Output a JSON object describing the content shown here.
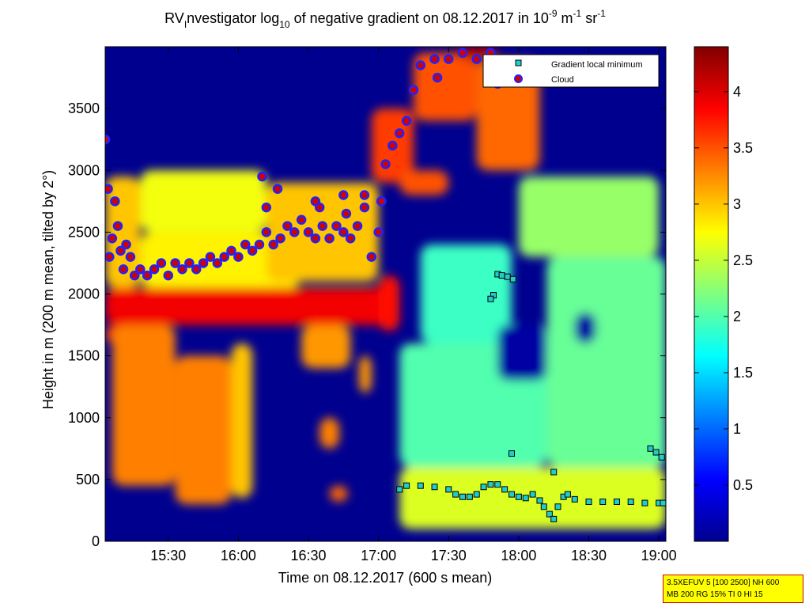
{
  "title": {
    "prefix": "RV",
    "prefix_sub": "I",
    "mid1": "nvestigator log",
    "mid1_sub": "10",
    "mid2": " of negative gradient on 08.12.2017 in 10",
    "exp1": "-9",
    "unit1": " m",
    "exp2": "-1",
    "unit2": " sr",
    "exp3": "-1"
  },
  "info_box": {
    "line1": "3.5XEFUV 5 [100 2500] NH 600",
    "line2": "MB 200 RG 15% TI 0 HI 15"
  },
  "colors": {
    "cloud_fill": "#d10000",
    "cloud_edge": "#2222ff",
    "gradient_min_fill": "#22cccc",
    "background_field": "#00008f"
  },
  "chart_data": {
    "type": "heatmap",
    "title": "RVInvestigator log10 of negative gradient on 08.12.2017 in 10^-9 m^-1 sr^-1",
    "xlabel": "Time on 08.12.2017 (600 s mean)",
    "ylabel": "Height in m (200 m mean, tilted by 2°)",
    "x_range_hours": [
      15.05,
      19.05
    ],
    "y_range_m": [
      0,
      4000
    ],
    "x_ticks": [
      {
        "t": 15.5,
        "label": "15:30"
      },
      {
        "t": 16.0,
        "label": "16:00"
      },
      {
        "t": 16.5,
        "label": "16:30"
      },
      {
        "t": 17.0,
        "label": "17:00"
      },
      {
        "t": 17.5,
        "label": "17:30"
      },
      {
        "t": 18.0,
        "label": "18:00"
      },
      {
        "t": 18.5,
        "label": "18:30"
      },
      {
        "t": 19.0,
        "label": "19:00"
      }
    ],
    "y_ticks": [
      {
        "v": 0,
        "label": "0"
      },
      {
        "v": 500,
        "label": "500"
      },
      {
        "v": 1000,
        "label": "1000"
      },
      {
        "v": 1500,
        "label": "1500"
      },
      {
        "v": 2000,
        "label": "2000"
      },
      {
        "v": 2500,
        "label": "2500"
      },
      {
        "v": 3000,
        "label": "3000"
      },
      {
        "v": 3500,
        "label": "3500"
      }
    ],
    "colorbar": {
      "range": [
        0,
        4.4
      ],
      "ticks": [
        {
          "v": 0.5,
          "label": "0.5"
        },
        {
          "v": 1.0,
          "label": "1"
        },
        {
          "v": 1.5,
          "label": "1.5"
        },
        {
          "v": 2.0,
          "label": "2"
        },
        {
          "v": 2.5,
          "label": "2.5"
        },
        {
          "v": 3.0,
          "label": "3"
        },
        {
          "v": 3.5,
          "label": "3.5"
        },
        {
          "v": 4.0,
          "label": "4"
        }
      ]
    },
    "legend": {
      "placement": "top-right",
      "entries": [
        {
          "name": "Gradient local minimum",
          "marker": "square"
        },
        {
          "name": "Cloud",
          "marker": "circle"
        }
      ]
    },
    "regions": [
      {
        "t0": 15.05,
        "t1": 17.15,
        "h0": 1750,
        "h1": 2050,
        "value": 3.9
      },
      {
        "t0": 15.05,
        "t1": 15.2,
        "h0": 1600,
        "h1": 1750,
        "value": 3.6
      },
      {
        "t0": 15.05,
        "t1": 15.3,
        "h0": 2050,
        "h1": 2950,
        "value": 3.0
      },
      {
        "t0": 15.1,
        "t1": 15.55,
        "h0": 450,
        "h1": 1750,
        "value": 3.3
      },
      {
        "t0": 15.55,
        "t1": 15.95,
        "h0": 300,
        "h1": 1500,
        "value": 3.3
      },
      {
        "t0": 15.95,
        "t1": 16.1,
        "h0": 350,
        "h1": 1600,
        "value": 3.0
      },
      {
        "t0": 15.3,
        "t1": 16.45,
        "h0": 2050,
        "h1": 2500,
        "value": 2.8
      },
      {
        "t0": 15.3,
        "t1": 16.2,
        "h0": 2500,
        "h1": 3000,
        "value": 2.7
      },
      {
        "t0": 16.2,
        "t1": 17.0,
        "h0": 2100,
        "h1": 2900,
        "value": 3.0
      },
      {
        "t0": 16.45,
        "t1": 16.8,
        "h0": 1400,
        "h1": 1750,
        "value": 3.2
      },
      {
        "t0": 16.58,
        "t1": 16.72,
        "h0": 750,
        "h1": 1000,
        "value": 3.3
      },
      {
        "t0": 16.86,
        "t1": 16.95,
        "h0": 1200,
        "h1": 1500,
        "value": 3.2
      },
      {
        "t0": 16.65,
        "t1": 16.78,
        "h0": 320,
        "h1": 450,
        "value": 3.4
      },
      {
        "t0": 17.0,
        "t1": 17.15,
        "h0": 1700,
        "h1": 2150,
        "value": 3.8
      },
      {
        "t0": 16.95,
        "t1": 17.25,
        "h0": 2900,
        "h1": 3500,
        "value": 3.6
      },
      {
        "t0": 17.25,
        "t1": 17.7,
        "h0": 3400,
        "h1": 3950,
        "value": 3.5
      },
      {
        "t0": 17.55,
        "t1": 17.85,
        "h0": 3900,
        "h1": 4000,
        "value": 4.2
      },
      {
        "t0": 17.7,
        "t1": 18.15,
        "h0": 3000,
        "h1": 3900,
        "value": 3.4
      },
      {
        "t0": 17.15,
        "t1": 17.5,
        "h0": 2800,
        "h1": 3000,
        "value": 3.5
      },
      {
        "t0": 17.15,
        "t1": 19.05,
        "h0": 100,
        "h1": 600,
        "value": 2.6
      },
      {
        "t0": 17.15,
        "t1": 18.2,
        "h0": 600,
        "h1": 1600,
        "value": 2.0
      },
      {
        "t0": 17.3,
        "t1": 17.95,
        "h0": 1600,
        "h1": 2400,
        "value": 1.9
      },
      {
        "t0": 18.2,
        "t1": 19.05,
        "h0": 600,
        "h1": 2300,
        "value": 2.1
      },
      {
        "t0": 18.0,
        "t1": 19.0,
        "h0": 2300,
        "h1": 2950,
        "value": 2.3
      },
      {
        "t0": 17.85,
        "t1": 18.2,
        "h0": 1300,
        "h1": 1750,
        "value": 0.1
      },
      {
        "t0": 18.4,
        "t1": 18.55,
        "h0": 1600,
        "h1": 1850,
        "value": 0.1
      }
    ],
    "cloud_points": [
      {
        "t": 15.05,
        "h": 3250
      },
      {
        "t": 15.07,
        "h": 2850
      },
      {
        "t": 15.08,
        "h": 2300
      },
      {
        "t": 15.1,
        "h": 2450
      },
      {
        "t": 15.12,
        "h": 2750
      },
      {
        "t": 15.14,
        "h": 2550
      },
      {
        "t": 15.16,
        "h": 2350
      },
      {
        "t": 15.18,
        "h": 2200
      },
      {
        "t": 15.2,
        "h": 2400
      },
      {
        "t": 15.23,
        "h": 2300
      },
      {
        "t": 15.26,
        "h": 2150
      },
      {
        "t": 15.3,
        "h": 2200
      },
      {
        "t": 15.35,
        "h": 2150
      },
      {
        "t": 15.4,
        "h": 2200
      },
      {
        "t": 15.45,
        "h": 2250
      },
      {
        "t": 15.5,
        "h": 2150
      },
      {
        "t": 15.55,
        "h": 2250
      },
      {
        "t": 15.6,
        "h": 2200
      },
      {
        "t": 15.65,
        "h": 2250
      },
      {
        "t": 15.7,
        "h": 2200
      },
      {
        "t": 15.75,
        "h": 2250
      },
      {
        "t": 15.8,
        "h": 2300
      },
      {
        "t": 15.85,
        "h": 2250
      },
      {
        "t": 15.9,
        "h": 2300
      },
      {
        "t": 15.95,
        "h": 2350
      },
      {
        "t": 16.0,
        "h": 2300
      },
      {
        "t": 16.05,
        "h": 2400
      },
      {
        "t": 16.1,
        "h": 2350
      },
      {
        "t": 16.15,
        "h": 2400
      },
      {
        "t": 16.2,
        "h": 2500
      },
      {
        "t": 16.25,
        "h": 2400
      },
      {
        "t": 16.3,
        "h": 2450
      },
      {
        "t": 16.35,
        "h": 2550
      },
      {
        "t": 16.4,
        "h": 2500
      },
      {
        "t": 16.45,
        "h": 2600
      },
      {
        "t": 16.5,
        "h": 2500
      },
      {
        "t": 16.55,
        "h": 2450
      },
      {
        "t": 16.6,
        "h": 2550
      },
      {
        "t": 16.65,
        "h": 2450
      },
      {
        "t": 16.7,
        "h": 2550
      },
      {
        "t": 16.75,
        "h": 2500
      },
      {
        "t": 16.8,
        "h": 2450
      },
      {
        "t": 16.85,
        "h": 2550
      },
      {
        "t": 16.9,
        "h": 2700
      },
      {
        "t": 16.95,
        "h": 2300
      },
      {
        "t": 17.0,
        "h": 2500
      },
      {
        "t": 17.02,
        "h": 2750
      },
      {
        "t": 17.05,
        "h": 3050
      },
      {
        "t": 17.1,
        "h": 3200
      },
      {
        "t": 17.15,
        "h": 3300
      },
      {
        "t": 17.2,
        "h": 3400
      },
      {
        "t": 17.25,
        "h": 3650
      },
      {
        "t": 17.3,
        "h": 3850
      },
      {
        "t": 17.4,
        "h": 3900
      },
      {
        "t": 17.5,
        "h": 3900
      },
      {
        "t": 17.6,
        "h": 3950
      },
      {
        "t": 17.7,
        "h": 3900
      },
      {
        "t": 17.8,
        "h": 3950
      },
      {
        "t": 17.85,
        "h": 3700
      },
      {
        "t": 17.9,
        "h": 3850
      },
      {
        "t": 16.17,
        "h": 2950
      },
      {
        "t": 16.2,
        "h": 2700
      },
      {
        "t": 16.28,
        "h": 2850
      },
      {
        "t": 16.55,
        "h": 2750
      },
      {
        "t": 16.58,
        "h": 2700
      },
      {
        "t": 16.75,
        "h": 2800
      },
      {
        "t": 16.77,
        "h": 2650
      },
      {
        "t": 16.9,
        "h": 2800
      },
      {
        "t": 17.42,
        "h": 3750
      }
    ],
    "gradient_min_points": [
      {
        "t": 17.15,
        "h": 420
      },
      {
        "t": 17.2,
        "h": 450
      },
      {
        "t": 17.3,
        "h": 450
      },
      {
        "t": 17.4,
        "h": 440
      },
      {
        "t": 17.5,
        "h": 420
      },
      {
        "t": 17.55,
        "h": 380
      },
      {
        "t": 17.6,
        "h": 360
      },
      {
        "t": 17.65,
        "h": 360
      },
      {
        "t": 17.7,
        "h": 380
      },
      {
        "t": 17.75,
        "h": 440
      },
      {
        "t": 17.8,
        "h": 460
      },
      {
        "t": 17.85,
        "h": 460
      },
      {
        "t": 17.9,
        "h": 420
      },
      {
        "t": 17.95,
        "h": 380
      },
      {
        "t": 18.0,
        "h": 360
      },
      {
        "t": 18.05,
        "h": 350
      },
      {
        "t": 18.1,
        "h": 380
      },
      {
        "t": 18.15,
        "h": 330
      },
      {
        "t": 18.18,
        "h": 280
      },
      {
        "t": 18.22,
        "h": 220
      },
      {
        "t": 18.25,
        "h": 180
      },
      {
        "t": 18.28,
        "h": 280
      },
      {
        "t": 18.32,
        "h": 360
      },
      {
        "t": 18.35,
        "h": 380
      },
      {
        "t": 18.4,
        "h": 340
      },
      {
        "t": 18.5,
        "h": 320
      },
      {
        "t": 18.6,
        "h": 320
      },
      {
        "t": 18.7,
        "h": 320
      },
      {
        "t": 18.8,
        "h": 320
      },
      {
        "t": 18.9,
        "h": 310
      },
      {
        "t": 19.0,
        "h": 310
      },
      {
        "t": 19.03,
        "h": 310
      },
      {
        "t": 17.85,
        "h": 2160
      },
      {
        "t": 17.88,
        "h": 2150
      },
      {
        "t": 17.92,
        "h": 2140
      },
      {
        "t": 17.96,
        "h": 2120
      },
      {
        "t": 17.82,
        "h": 1990
      },
      {
        "t": 17.8,
        "h": 1960
      },
      {
        "t": 17.95,
        "h": 710
      },
      {
        "t": 18.25,
        "h": 560
      },
      {
        "t": 18.94,
        "h": 750
      },
      {
        "t": 18.98,
        "h": 720
      },
      {
        "t": 19.02,
        "h": 680
      }
    ]
  }
}
